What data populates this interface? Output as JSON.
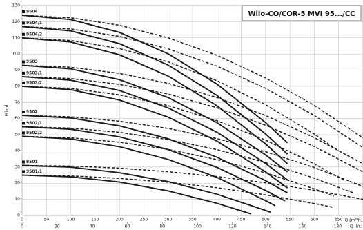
{
  "chart_data": {
    "type": "line",
    "title": "Wilo-CO/COR-5 MVI 95.../CC",
    "y_label": "H [m]",
    "x_label": "Q [m³/h]",
    "x2_label": "Q [l/s]",
    "xlim": [
      0,
      700
    ],
    "xticks": [
      0,
      50,
      100,
      150,
      200,
      250,
      300,
      350,
      400,
      450,
      500,
      550,
      600,
      650
    ],
    "x2lim": [
      0,
      194.44
    ],
    "x2ticks": [
      0,
      20,
      40,
      60,
      80,
      100,
      120,
      140,
      160,
      180
    ],
    "ylim": [
      0,
      130
    ],
    "yticks": [
      0,
      10,
      20,
      30,
      40,
      50,
      60,
      70,
      80,
      90,
      100,
      110,
      120,
      130
    ],
    "grid": true,
    "color": "#1a1a1a",
    "series": [
      {
        "name": "9504",
        "line_style": "solid",
        "x": [
          0,
          100,
          200,
          300,
          400,
          500,
          545
        ],
        "values": [
          124,
          121.3,
          113.4,
          100.1,
          81.4,
          57.5,
          45
        ]
      },
      {
        "line_style": "dashed",
        "x": [
          0,
          100,
          200,
          300,
          400,
          500,
          600,
          700
        ],
        "values": [
          124,
          122.4,
          117.8,
          110.0,
          99.2,
          85.2,
          68.2,
          48
        ]
      },
      {
        "name": "9504/1",
        "line_style": "solid",
        "x": [
          0,
          100,
          200,
          300,
          400,
          500,
          545
        ],
        "values": [
          117,
          114.3,
          106.4,
          93.1,
          74.4,
          50.5,
          38
        ]
      },
      {
        "line_style": "dashed",
        "x": [
          0,
          100,
          200,
          300,
          400,
          500,
          600,
          700
        ],
        "values": [
          117,
          115.5,
          110.9,
          103.2,
          92.5,
          78.7,
          61.9,
          42
        ]
      },
      {
        "name": "9504/2",
        "line_style": "solid",
        "x": [
          0,
          100,
          200,
          300,
          400,
          500,
          545
        ],
        "values": [
          110,
          107.4,
          99.5,
          86.3,
          68.0,
          44.3,
          32
        ]
      },
      {
        "line_style": "dashed",
        "x": [
          0,
          100,
          200,
          300,
          400,
          500,
          600,
          650
        ],
        "values": [
          110,
          108.3,
          103.4,
          95.1,
          83.5,
          68.6,
          50.4,
          40
        ]
      },
      {
        "name": "9503",
        "line_style": "solid",
        "x": [
          0,
          100,
          200,
          300,
          400,
          500,
          545
        ],
        "values": [
          93,
          90.8,
          84.1,
          73.0,
          57.5,
          37.5,
          27
        ]
      },
      {
        "line_style": "dashed",
        "x": [
          0,
          100,
          200,
          300,
          400,
          500,
          600,
          700
        ],
        "values": [
          93,
          91.8,
          88.0,
          81.8,
          73.1,
          61.9,
          48.2,
          32
        ]
      },
      {
        "name": "9503/1",
        "line_style": "solid",
        "x": [
          0,
          100,
          200,
          300,
          400,
          500,
          545
        ],
        "values": [
          86,
          83.8,
          77.4,
          66.6,
          51.6,
          32.2,
          22
        ]
      },
      {
        "line_style": "dashed",
        "x": [
          0,
          100,
          200,
          300,
          400,
          500,
          600,
          700
        ],
        "values": [
          86,
          84.8,
          81.2,
          75.2,
          66.7,
          55.9,
          42.7,
          27
        ]
      },
      {
        "name": "9503/2",
        "line_style": "solid",
        "x": [
          0,
          100,
          200,
          300,
          400,
          500,
          545
        ],
        "values": [
          80,
          77.9,
          71.5,
          60.9,
          46.1,
          27.0,
          17
        ]
      },
      {
        "line_style": "dashed",
        "x": [
          0,
          100,
          200,
          300,
          400,
          500,
          600,
          660
        ],
        "values": [
          80,
          78.7,
          74.7,
          68.0,
          58.7,
          46.7,
          32.0,
          22
        ]
      },
      {
        "name": "9502",
        "line_style": "solid",
        "x": [
          0,
          100,
          200,
          300,
          400,
          500,
          545
        ],
        "values": [
          62,
          60.4,
          55.5,
          47.5,
          36.1,
          21.6,
          14
        ]
      },
      {
        "line_style": "dashed",
        "x": [
          0,
          100,
          200,
          300,
          400,
          500,
          600,
          700
        ],
        "values": [
          62,
          61.1,
          58.4,
          53.9,
          47.6,
          39.5,
          29.7,
          18
        ]
      },
      {
        "name": "9502/1",
        "line_style": "solid",
        "x": [
          0,
          100,
          200,
          300,
          400,
          500,
          540
        ],
        "values": [
          55,
          53.4,
          48.7,
          40.8,
          29.8,
          15.5,
          9
        ]
      },
      {
        "line_style": "dashed",
        "x": [
          0,
          100,
          200,
          300,
          400,
          500,
          600,
          680
        ],
        "values": [
          55,
          54.1,
          51.5,
          47.0,
          40.8,
          32.8,
          23.1,
          14
        ]
      },
      {
        "name": "9502/2",
        "line_style": "solid",
        "x": [
          0,
          100,
          200,
          300,
          400,
          500,
          520
        ],
        "values": [
          49,
          47.4,
          42.6,
          34.7,
          23.6,
          9.2,
          6
        ]
      },
      {
        "line_style": "dashed",
        "x": [
          0,
          100,
          200,
          300,
          400,
          500,
          600,
          640
        ],
        "values": [
          49,
          48.1,
          45.4,
          40.9,
          34.6,
          26.4,
          16.5,
          12
        ]
      },
      {
        "name": "9501",
        "line_style": "solid",
        "x": [
          0,
          100,
          200,
          300,
          400,
          500,
          510
        ],
        "values": [
          31,
          29.9,
          26.5,
          21.0,
          13.2,
          3.1,
          2
        ]
      },
      {
        "line_style": "dashed",
        "x": [
          0,
          100,
          200,
          300,
          400,
          500,
          600,
          700
        ],
        "values": [
          31,
          30.6,
          29.3,
          27.1,
          24.1,
          20.3,
          15.6,
          10
        ]
      },
      {
        "name": "9501/1",
        "line_style": "solid",
        "x": [
          0,
          100,
          200,
          300,
          400,
          470
        ],
        "values": [
          25,
          23.9,
          20.7,
          15.2,
          7.6,
          1
        ]
      },
      {
        "line_style": "dashed",
        "x": [
          0,
          100,
          200,
          300,
          400,
          500,
          600,
          640
        ],
        "values": [
          25,
          24.5,
          23.0,
          20.6,
          17.2,
          12.8,
          7.4,
          5
        ]
      }
    ]
  }
}
